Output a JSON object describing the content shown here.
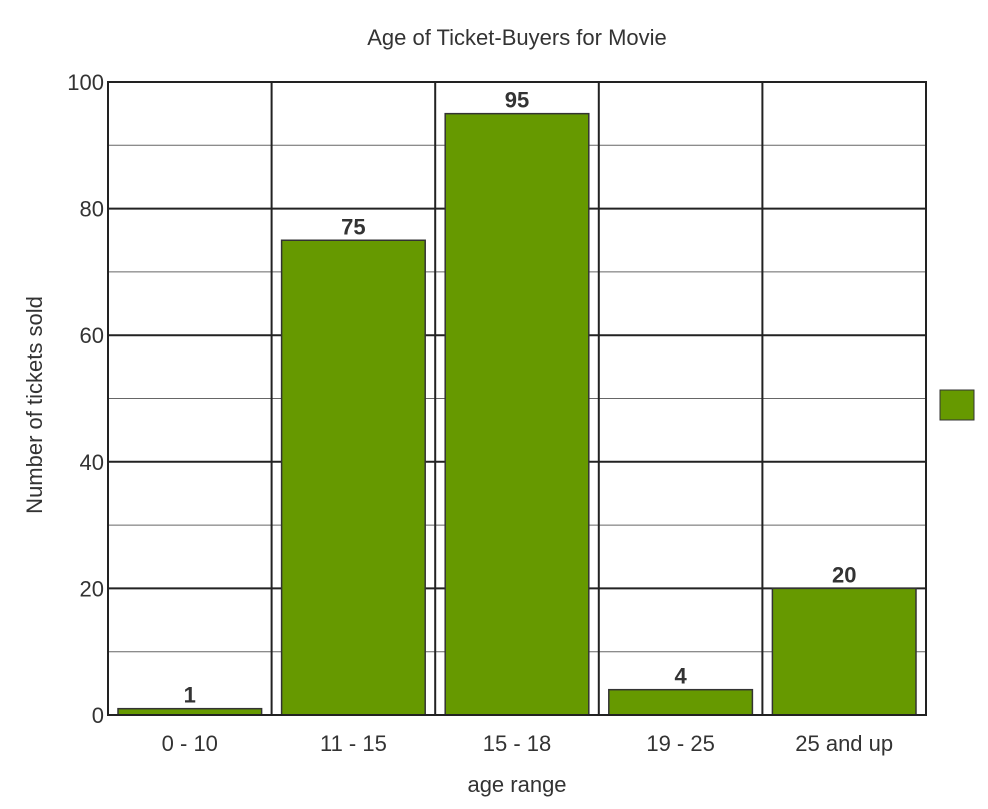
{
  "chart_data": {
    "type": "bar",
    "title": "Age of Ticket-Buyers for Movie",
    "xlabel": "age range",
    "ylabel": "Number of tickets sold",
    "categories": [
      "0 - 10",
      "11 - 15",
      "15 - 18",
      "19 - 25",
      "25 and up"
    ],
    "values": [
      1,
      75,
      95,
      4,
      20
    ],
    "data_labels": [
      "1",
      "75",
      "95",
      "4",
      "20"
    ],
    "ylim": [
      0,
      100
    ],
    "yticks": [
      0,
      20,
      40,
      60,
      80,
      100
    ],
    "ytick_labels": [
      "0",
      "20",
      "40",
      "60",
      "80",
      "100"
    ],
    "minor_grid_step": 10,
    "grid": true,
    "legend": {
      "placement": "right",
      "entries": [
        ""
      ]
    },
    "colors": {
      "bar": "#669900",
      "bar_border": "#333333",
      "grid_major": "#222222",
      "grid_minor": "#666666",
      "text": "#333333"
    }
  }
}
